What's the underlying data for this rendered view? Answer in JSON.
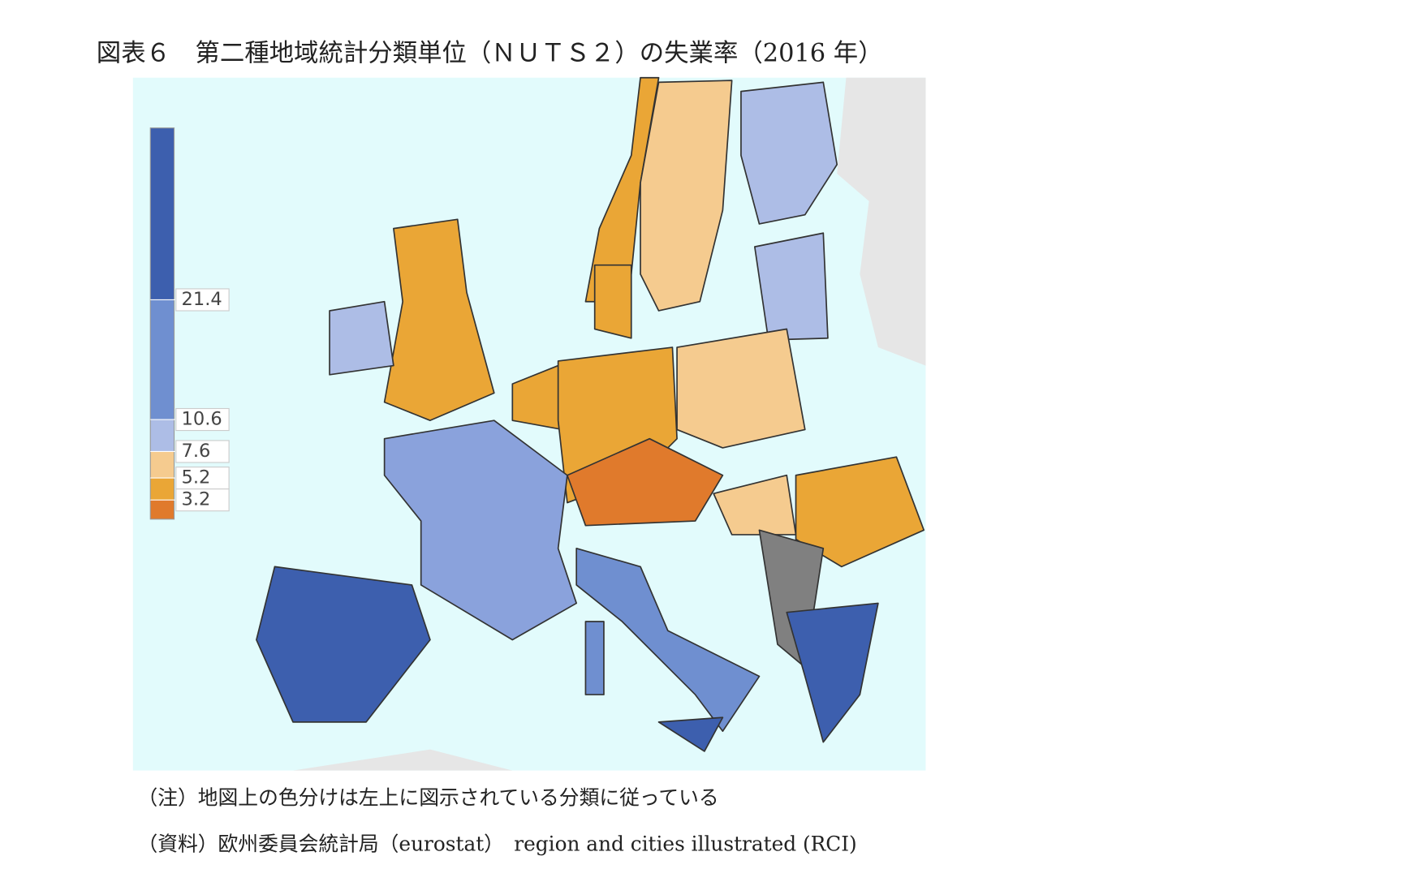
{
  "title": "図表６　第二種地域統計分類単位（ＮＵＴＳ２）の失業率（2016 年）",
  "legend": {
    "breaks": [
      21.4,
      10.6,
      7.6,
      5.2,
      3.2
    ],
    "colors": [
      "#3d5fae",
      "#6f8fd0",
      "#adbde6",
      "#f5cb8f",
      "#eaa636",
      "#e07a2c"
    ]
  },
  "note": "（注）地図上の色分けは左上に図示されている分類に従っている",
  "source": "（資料）欧州委員会統計局（eurostat）　region and cities illustrated (RCI)"
}
